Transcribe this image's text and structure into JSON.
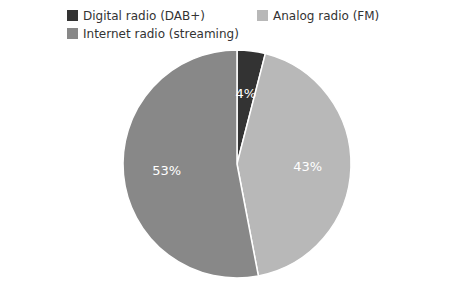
{
  "chart_data": {
    "type": "pie",
    "categories": [
      "Digital radio (DAB+)",
      "Analog radio (FM)",
      "Internet radio (streaming)"
    ],
    "values": [
      4,
      43,
      53
    ],
    "value_labels": [
      "4%",
      "43%",
      "53%"
    ],
    "colors": [
      "#333333",
      "#b8b8b8",
      "#888888"
    ],
    "data_labels": true,
    "legend": "top"
  }
}
